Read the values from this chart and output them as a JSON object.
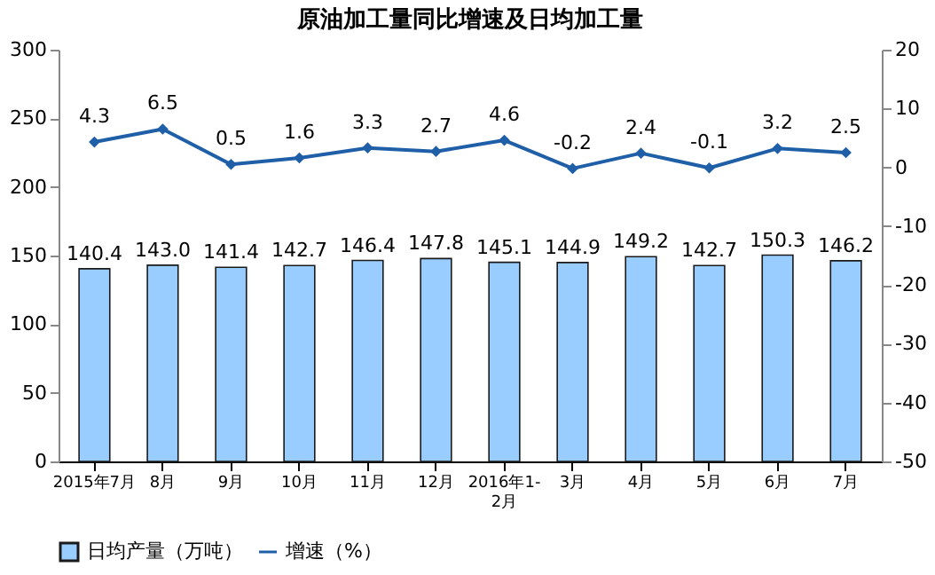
{
  "chart_data": {
    "type": "bar",
    "title": "原油加工量同比增速及日均加工量",
    "categories": [
      "2015年7月",
      "8月",
      "9月",
      "10月",
      "11月",
      "12月",
      "2016年1-2月",
      "3月",
      "4月",
      "5月",
      "6月",
      "7月"
    ],
    "series": [
      {
        "name": "日均产量（万吨）",
        "color": "#99ccff",
        "values": [
          140.4,
          143.0,
          141.4,
          142.7,
          146.4,
          147.8,
          145.1,
          144.9,
          149.2,
          142.7,
          150.3,
          146.2
        ],
        "value_labels": [
          "140.4",
          "143.0",
          "141.4",
          "142.7",
          "146.4",
          "147.8",
          "145.1",
          "144.9",
          "149.2",
          "142.7",
          "150.3",
          "146.2"
        ]
      },
      {
        "name": "增速（%）",
        "type": "line",
        "axis": "y2",
        "color": "#1f5fa8",
        "marker": "diamond",
        "values": [
          4.3,
          6.5,
          0.5,
          1.6,
          3.3,
          2.7,
          4.6,
          -0.2,
          2.4,
          -0.1,
          3.2,
          2.5
        ],
        "value_labels": [
          "4.3",
          "6.5",
          "0.5",
          "1.6",
          "3.3",
          "2.7",
          "4.6",
          "-0.2",
          "2.4",
          "-0.1",
          "3.2",
          "2.5"
        ]
      }
    ],
    "ylim": [
      0,
      300
    ],
    "yticks": [
      0,
      50,
      100,
      150,
      200,
      250,
      300
    ],
    "y2lim": [
      -50,
      20
    ],
    "y2ticks": [
      -50,
      -40,
      -30,
      -20,
      -10,
      0,
      10,
      20
    ],
    "grid": false,
    "legend": "bottom"
  }
}
